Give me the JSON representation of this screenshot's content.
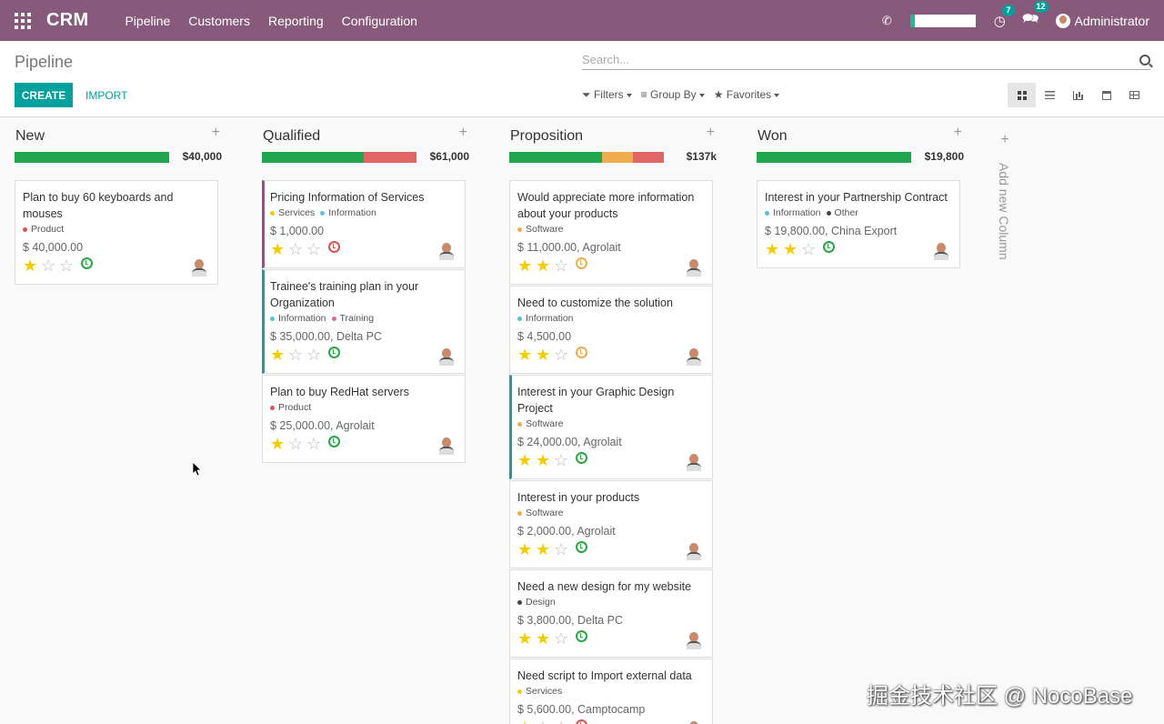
{
  "topbar": {
    "app_name": "CRM",
    "menu": [
      "Pipeline",
      "Customers",
      "Reporting",
      "Configuration"
    ],
    "activity_count": "7",
    "message_count": "12",
    "user_name": "Administrator",
    "bar_color": "#875a7b"
  },
  "control_panel": {
    "breadcrumb": "Pipeline",
    "search_placeholder": "Search...",
    "create_label": "CREATE",
    "import_label": "IMPORT",
    "filters_label": "Filters",
    "group_by_label": "Group By",
    "favorites_label": "Favorites",
    "views": [
      "kanban",
      "list",
      "graph",
      "calendar",
      "pivot"
    ],
    "active_view": "kanban",
    "accent_color": "#00a09d"
  },
  "columns": [
    {
      "title": "New",
      "total": "$40,000",
      "cards": [
        {
          "title": "Plan to buy 60 keyboards and mouses",
          "tags": [
            {
              "label": "Product",
              "color": "#d9534f"
            }
          ],
          "amount": "$ 40,000.00",
          "stars": 1,
          "activity": "green"
        }
      ]
    },
    {
      "title": "Qualified",
      "total": "$61,000",
      "cards": [
        {
          "title": "Pricing Information of Services",
          "tags": [
            {
              "label": "Services",
              "color": "#f3cc00"
            },
            {
              "label": "Information",
              "color": "#5bc0de"
            }
          ],
          "amount": "$ 1,000.00",
          "stars": 1,
          "activity": "red"
        },
        {
          "title": "Trainee's training plan in your Organization",
          "tags": [
            {
              "label": "Information",
              "color": "#5bc0de"
            },
            {
              "label": "Training",
              "color": "#e06a8a"
            }
          ],
          "amount": "$ 35,000.00, Delta PC",
          "stars": 1,
          "activity": "green"
        },
        {
          "title": "Plan to buy RedHat servers",
          "tags": [
            {
              "label": "Product",
              "color": "#d9534f"
            }
          ],
          "amount": "$ 25,000.00, Agrolait",
          "stars": 1,
          "activity": "green"
        }
      ]
    },
    {
      "title": "Proposition",
      "total": "$137k",
      "cards": [
        {
          "title": "Would appreciate more information about your products",
          "tags": [
            {
              "label": "Software",
              "color": "#f0ad4e"
            }
          ],
          "amount": "$ 11,000.00, Agrolait",
          "stars": 2,
          "activity": "orange"
        },
        {
          "title": "Need to customize the solution",
          "tags": [
            {
              "label": "Information",
              "color": "#5bc0de"
            }
          ],
          "amount": "$ 4,500.00",
          "stars": 2,
          "activity": "orange"
        },
        {
          "title": "Interest in your Graphic Design Project",
          "tags": [
            {
              "label": "Software",
              "color": "#f0ad4e"
            }
          ],
          "amount": "$ 24,000.00, Agrolait",
          "stars": 2,
          "activity": "green"
        },
        {
          "title": "Interest in your products",
          "tags": [
            {
              "label": "Software",
              "color": "#f0ad4e"
            }
          ],
          "amount": "$ 2,000.00, Agrolait",
          "stars": 2,
          "activity": "green"
        },
        {
          "title": "Need a new design for my website",
          "tags": [
            {
              "label": "Design",
              "color": "#444444"
            }
          ],
          "amount": "$ 3,800.00, Delta PC",
          "stars": 2,
          "activity": "green"
        },
        {
          "title": "Need script to Import external data",
          "tags": [
            {
              "label": "Services",
              "color": "#f3cc00"
            }
          ],
          "amount": "$ 5,600.00, Camptocamp",
          "stars": 1,
          "activity": "red"
        }
      ]
    },
    {
      "title": "Won",
      "total": "$19,800",
      "cards": [
        {
          "title": "Interest in your Partnership Contract",
          "tags": [
            {
              "label": "Information",
              "color": "#5bc0de"
            },
            {
              "label": "Other",
              "color": "#444444"
            }
          ],
          "amount": "$ 19,800.00, China Export",
          "stars": 2,
          "activity": "green"
        }
      ]
    }
  ],
  "progress_bars": [
    [
      {
        "fraction": 1.0,
        "color": "#21a650"
      }
    ],
    [
      {
        "fraction": 0.66,
        "color": "#21a650"
      },
      {
        "fraction": 0.34,
        "color": "#e06666"
      }
    ],
    [
      {
        "fraction": 0.6,
        "color": "#21a650"
      },
      {
        "fraction": 0.2,
        "color": "#f0ad4e"
      },
      {
        "fraction": 0.2,
        "color": "#e06666"
      }
    ],
    [
      {
        "fraction": 1.0,
        "color": "#21a650"
      }
    ]
  ],
  "add_column_label": "Add new Column",
  "watermark": "掘金技术社区 @ NocoBase"
}
